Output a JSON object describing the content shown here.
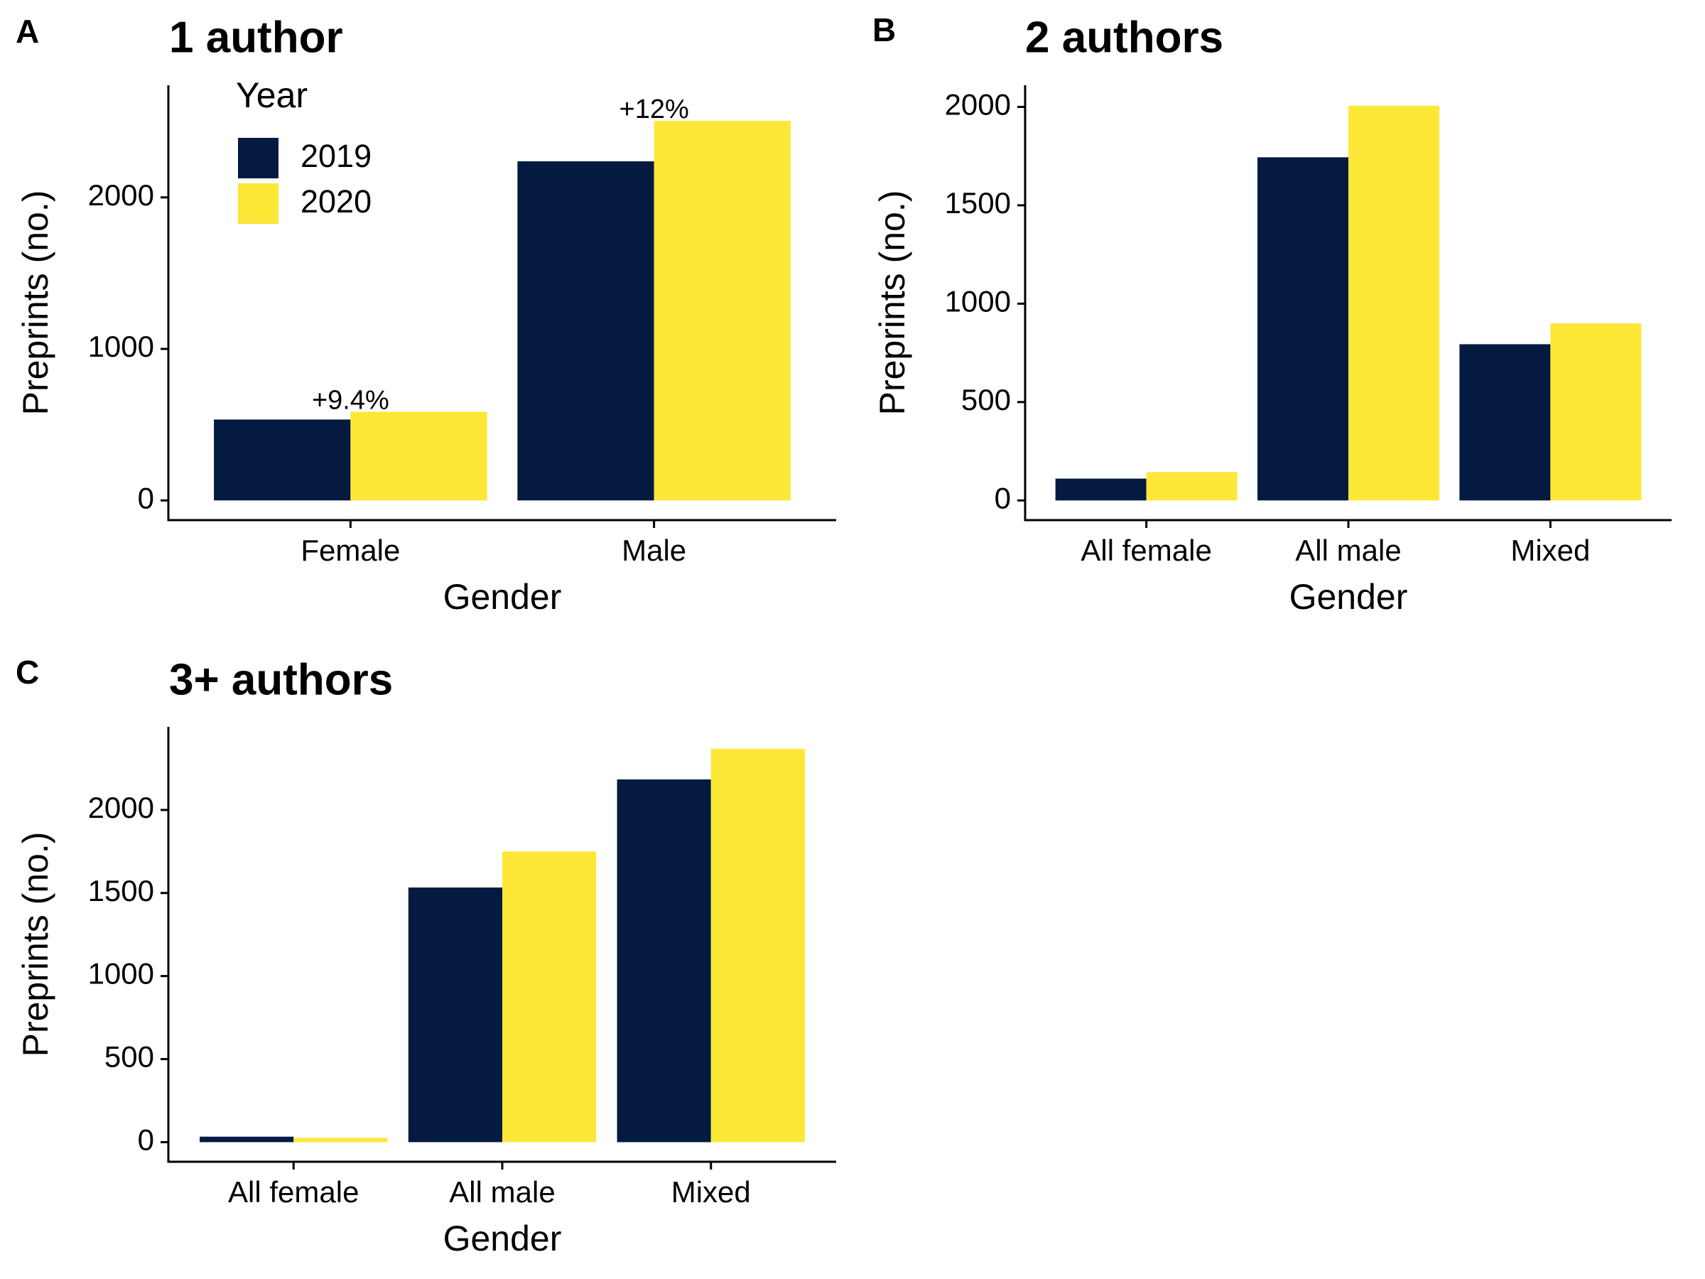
{
  "chart_data": [
    {
      "type": "bar",
      "panel": "A",
      "title": "1 author",
      "x_label": "Gender",
      "y_label": "Preprints (no.)",
      "legend_title": "Year",
      "categories": [
        "Female",
        "Male"
      ],
      "series": [
        {
          "name": "2019",
          "color": "#041a40",
          "values": [
            534,
            2238
          ]
        },
        {
          "name": "2020",
          "color": "#fde737",
          "values": [
            585,
            2505
          ]
        }
      ],
      "annotations": [
        "+9.4%",
        "+12%"
      ],
      "ylim": [
        -130,
        2740
      ],
      "yticks": [
        0,
        1000,
        2000
      ]
    },
    {
      "type": "bar",
      "panel": "B",
      "title": "2 authors",
      "x_label": "Gender",
      "y_label": "Preprints (no.)",
      "categories": [
        "All female",
        "All male",
        "Mixed"
      ],
      "series": [
        {
          "color": "#041a40",
          "values": [
            111,
            1744,
            794
          ]
        },
        {
          "color": "#fde737",
          "values": [
            144,
            2006,
            900
          ]
        }
      ],
      "ylim": [
        -100,
        2110
      ],
      "yticks": [
        0,
        500,
        1000,
        1500,
        2000
      ]
    },
    {
      "type": "bar",
      "panel": "C",
      "title": "3+ authors",
      "x_label": "Gender",
      "y_label": "Preprints (no.)",
      "categories": [
        "All female",
        "All male",
        "Mixed"
      ],
      "series": [
        {
          "color": "#041a40",
          "values": [
            33,
            1533,
            2184
          ]
        },
        {
          "color": "#fde737",
          "values": [
            26,
            1750,
            2368
          ]
        }
      ],
      "ylim": [
        -118,
        2500
      ],
      "yticks": [
        0,
        500,
        1000,
        1500,
        2000
      ]
    }
  ]
}
